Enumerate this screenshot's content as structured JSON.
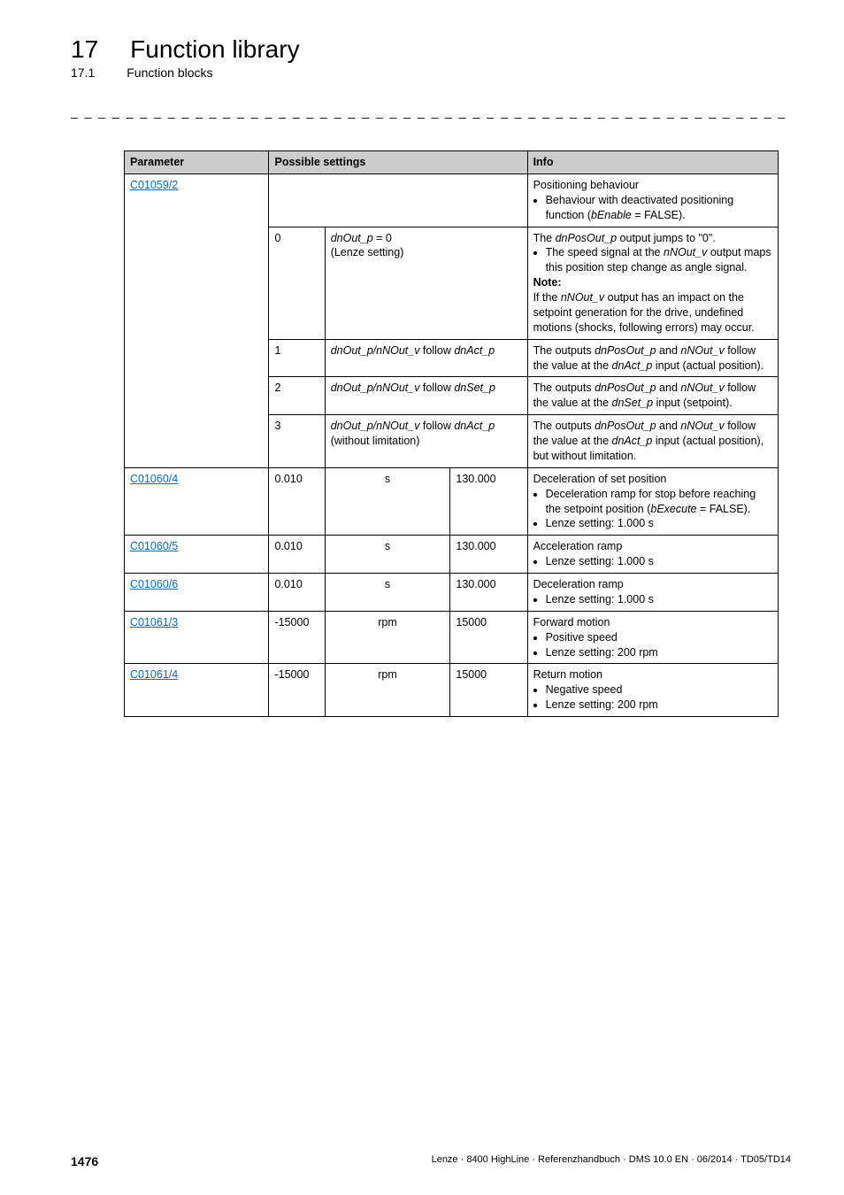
{
  "header": {
    "chapter_num": "17",
    "chapter_title": "Function library",
    "sub_num": "17.1",
    "sub_title": "Function blocks"
  },
  "table": {
    "headers": {
      "parameter": "Parameter",
      "possible_settings": "Possible settings",
      "info": "Info"
    },
    "rows": {
      "r1": {
        "param": "C01059/2",
        "info_lead": "Positioning behaviour",
        "info_b1": "Behaviour with deactivated positioning function (",
        "info_b1_it": "bEnable",
        "info_b1_tail": " = FALSE)."
      },
      "r1a": {
        "idx": "0",
        "set_pre": "dnOut_p",
        "set_mid": " = 0",
        "set_line2": "(Lenze setting)",
        "info_l1_pre": "The ",
        "info_l1_it": "dnPosOut_p",
        "info_l1_post": " output jumps to \"0\".",
        "info_b1_pre": "The speed signal at the ",
        "info_b1_it": "nNOut_v",
        "info_b1_post": " output maps this position step change as angle signal.",
        "info_note": "Note:",
        "info_l2_pre": "If the ",
        "info_l2_it": "nNOut_v",
        "info_l2_post": " output has an impact on the setpoint generation for the drive, undefined motions (shocks, following errors) may occur."
      },
      "r1b": {
        "idx": "1",
        "set_it1": "dnOut_p/nNOut_v",
        "set_mid": " follow ",
        "set_it2": "dnAct_p",
        "info_pre": "The outputs ",
        "info_it1": "dnPosOut_p",
        "info_mid": " and ",
        "info_it2": "nNOut_v",
        "info_post1": " follow the value at the ",
        "info_it3": "dnAct_p",
        "info_post2": " input (actual position)."
      },
      "r1c": {
        "idx": "2",
        "set_it1": "dnOut_p/nNOut_v",
        "set_mid": " follow ",
        "set_it2": "dnSet_p",
        "info_pre": "The outputs ",
        "info_it1": "dnPosOut_p",
        "info_mid": " and ",
        "info_it2": "nNOut_v",
        "info_post1": " follow the value at the ",
        "info_it3": "dnSet_p",
        "info_post2": " input (setpoint)."
      },
      "r1d": {
        "idx": "3",
        "set_it1": "dnOut_p/nNOut_v",
        "set_mid": " follow ",
        "set_it2": "dnAct_p",
        "set_line2": "(without limitation)",
        "info_pre": "The outputs ",
        "info_it1": "dnPosOut_p",
        "info_mid": " and ",
        "info_it2": "nNOut_v",
        "info_post1": " follow the value at the ",
        "info_it3": "dnAct_p",
        "info_post2": " input (actual position), but without limitation."
      },
      "r2": {
        "param": "C01060/4",
        "min": "0.010",
        "unit": "s",
        "max": "130.000",
        "info_lead": "Deceleration of set position",
        "info_b1": "Deceleration ramp for stop before reaching the setpoint position (",
        "info_b1_it": "bExecute",
        "info_b1_tail": " = FALSE).",
        "info_b2": "Lenze setting: 1.000 s"
      },
      "r3": {
        "param": "C01060/5",
        "min": "0.010",
        "unit": "s",
        "max": "130.000",
        "info_lead": "Acceleration ramp",
        "info_b1": "Lenze setting: 1.000 s"
      },
      "r4": {
        "param": "C01060/6",
        "min": "0.010",
        "unit": "s",
        "max": "130.000",
        "info_lead": "Deceleration ramp",
        "info_b1": "Lenze setting: 1.000 s"
      },
      "r5": {
        "param": "C01061/3",
        "min": "-15000",
        "unit": "rpm",
        "max": "15000",
        "info_lead": "Forward motion",
        "info_b1": "Positive speed",
        "info_b2": "Lenze setting: 200 rpm"
      },
      "r6": {
        "param": "C01061/4",
        "min": "-15000",
        "unit": "rpm",
        "max": "15000",
        "info_lead": "Return motion",
        "info_b1": "Negative speed",
        "info_b2": "Lenze setting: 200 rpm"
      }
    }
  },
  "footer": {
    "page": "1476",
    "meta": "Lenze · 8400 HighLine · Referenzhandbuch · DMS 10.0 EN · 06/2014 · TD05/TD14"
  }
}
